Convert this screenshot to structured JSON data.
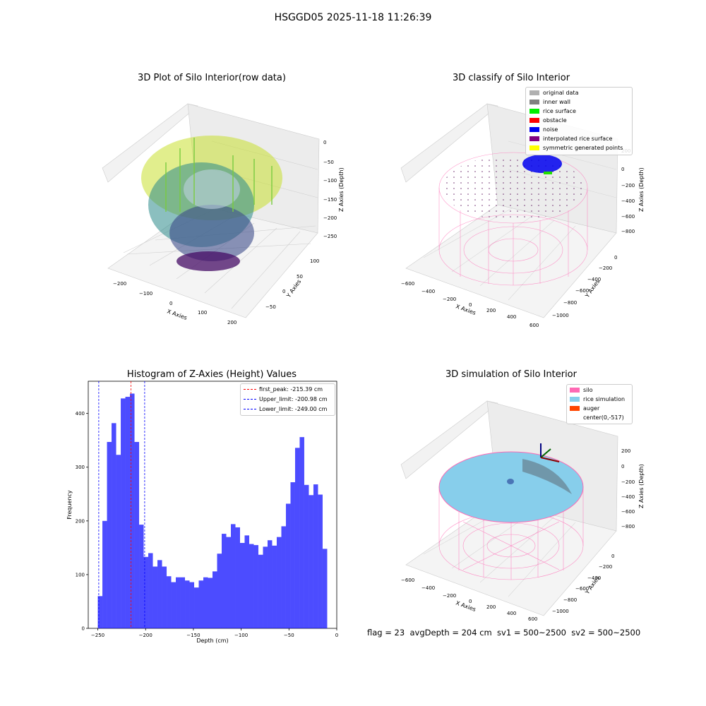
{
  "figure": {
    "suptitle": "HSGGD05 2025-11-18 11:26:39",
    "footer": "flag = 23  avgDepth = 204 cm  sv1 = 500~2500  sv2 = 500~2500"
  },
  "panels": {
    "raw": {
      "title": "3D Plot of Silo Interior(row data)",
      "xlabel": "X Axies",
      "ylabel": "Y Axies",
      "zlabel": "Z Axies (Depth)",
      "xticks": [
        "−200",
        "−100",
        "0",
        "100",
        "200"
      ],
      "yticks": [
        "−50",
        "0",
        "50",
        "100"
      ],
      "zticks": [
        "0",
        "−50",
        "−100",
        "−150",
        "−200",
        "−250"
      ]
    },
    "classify": {
      "title": "3D classify of Silo Interior",
      "xlabel": "X Axies",
      "ylabel": "Y Axies",
      "zlabel": "Z Axies (Depth)",
      "xticks": [
        "−600",
        "−400",
        "−200",
        "0",
        "200",
        "400",
        "600"
      ],
      "yticks": [
        "0",
        "−200",
        "−400",
        "−600",
        "−800",
        "−1000"
      ],
      "zticks": [
        "200",
        "0",
        "−200",
        "−400",
        "−600",
        "−800"
      ],
      "legend": [
        {
          "label": "original data",
          "color": "#b0b0b0"
        },
        {
          "label": "inner wall",
          "color": "#808080"
        },
        {
          "label": "rice surface",
          "color": "#00ee00"
        },
        {
          "label": "obstacle",
          "color": "#ff0000"
        },
        {
          "label": "noise",
          "color": "#0000ee"
        },
        {
          "label": "interpolated rice surface",
          "color": "#800080"
        },
        {
          "label": "symmetric generated points",
          "color": "#ffff00"
        }
      ]
    },
    "simulation": {
      "title": "3D simulation of Silo Interior",
      "xlabel": "X Axies",
      "ylabel": "Y Axies",
      "zlabel": "Z Axies (Depth)",
      "xticks": [
        "−600",
        "−400",
        "−200",
        "0",
        "200",
        "400",
        "600"
      ],
      "yticks": [
        "0",
        "−200",
        "−400",
        "−600",
        "−800",
        "−1000"
      ],
      "zticks": [
        "200",
        "0",
        "−200",
        "−400",
        "−600",
        "−800"
      ],
      "legend": [
        {
          "label": "silo",
          "color": "#ff69b4"
        },
        {
          "label": "rice simulation",
          "color": "#87ceeb"
        },
        {
          "label": "auger",
          "color": "#ff4500"
        },
        {
          "label": "center(0,-517)",
          "color": ""
        }
      ]
    }
  },
  "chart_data": {
    "type": "bar",
    "title": "Histogram of Z-Axies (Height) Values",
    "xlabel": "Depth (cm)",
    "ylabel": "Frequency",
    "xlim": [
      -260,
      0
    ],
    "ylim": [
      0,
      460
    ],
    "xticks": [
      -250,
      -200,
      -150,
      -100,
      -50,
      0
    ],
    "yticks": [
      0,
      100,
      200,
      300,
      400
    ],
    "bin_start": -250,
    "bin_width": 4.8,
    "values": [
      60,
      200,
      347,
      382,
      323,
      428,
      431,
      437,
      347,
      193,
      133,
      140,
      115,
      127,
      115,
      97,
      86,
      95,
      95,
      89,
      86,
      76,
      89,
      95,
      94,
      106,
      139,
      176,
      170,
      194,
      188,
      159,
      173,
      157,
      155,
      137,
      152,
      164,
      154,
      170,
      190,
      232,
      272,
      336,
      356,
      267,
      248,
      268,
      249,
      148
    ],
    "bar_color": "#0000ff",
    "vlines": [
      {
        "label": "first_peak: -215.39 cm",
        "x": -215.39,
        "color": "#ff0000"
      },
      {
        "label": "Upper_limit: -200.98 cm",
        "x": -200.98,
        "color": "#0000ff"
      },
      {
        "label": "Lower_limit: -249.00 cm",
        "x": -249.0,
        "color": "#0000ff"
      }
    ],
    "legend_position": "top-right"
  }
}
